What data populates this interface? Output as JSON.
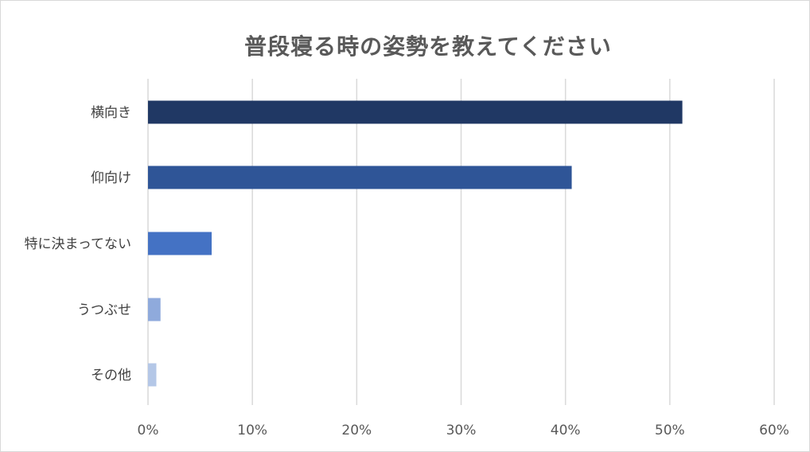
{
  "chart_data": {
    "type": "bar",
    "orientation": "horizontal",
    "title": "普段寝る時の姿勢を教えてください",
    "categories": [
      "横向き",
      "仰向け",
      "特に決まってない",
      "うつぶせ",
      "その他"
    ],
    "values": [
      51.2,
      40.6,
      6.1,
      1.2,
      0.8
    ],
    "colors": [
      "#203864",
      "#2f5597",
      "#4472c4",
      "#8faadc",
      "#b4c7e7"
    ],
    "xlim": [
      0,
      60
    ],
    "xticks": [
      "0%",
      "10%",
      "20%",
      "30%",
      "40%",
      "50%",
      "60%"
    ],
    "grid": true,
    "legend": false,
    "xlabel": "",
    "ylabel": ""
  }
}
